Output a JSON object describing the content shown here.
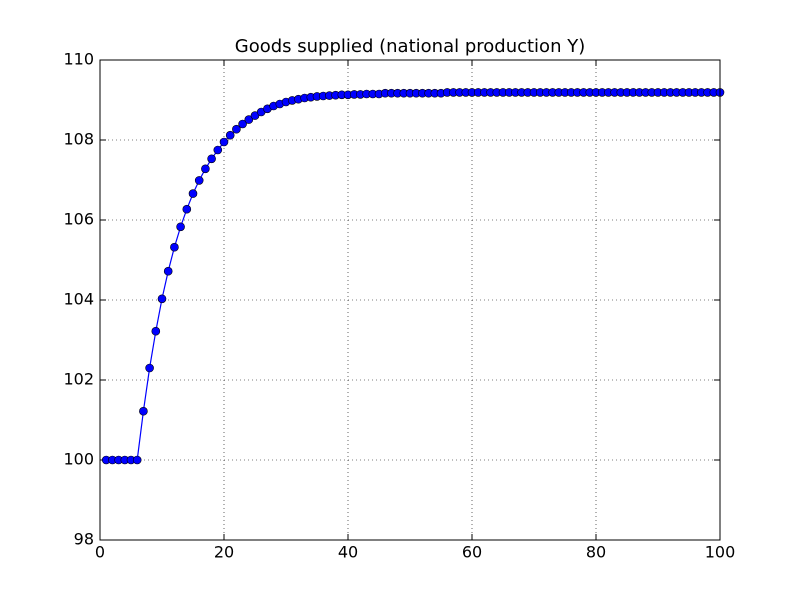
{
  "chart_data": {
    "type": "line",
    "title": "Goods supplied (national production Y)",
    "x": [
      1,
      2,
      3,
      4,
      5,
      6,
      7,
      8,
      9,
      10,
      11,
      12,
      13,
      14,
      15,
      16,
      17,
      18,
      19,
      20,
      21,
      22,
      23,
      24,
      25,
      26,
      27,
      28,
      29,
      30,
      31,
      32,
      33,
      34,
      35,
      36,
      37,
      38,
      39,
      40,
      41,
      42,
      43,
      44,
      45,
      46,
      47,
      48,
      49,
      50,
      51,
      52,
      53,
      54,
      55,
      56,
      57,
      58,
      59,
      60,
      61,
      62,
      63,
      64,
      65,
      66,
      67,
      68,
      69,
      70,
      71,
      72,
      73,
      74,
      75,
      76,
      77,
      78,
      79,
      80,
      81,
      82,
      83,
      84,
      85,
      86,
      87,
      88,
      89,
      90,
      91,
      92,
      93,
      94,
      95,
      96,
      97,
      98,
      99,
      100
    ],
    "series": [
      {
        "color": "#0000ff",
        "values": [
          100,
          100,
          100,
          100,
          100,
          100,
          101.22,
          102.3,
          103.22,
          104.03,
          104.72,
          105.32,
          105.83,
          106.27,
          106.66,
          106.99,
          107.28,
          107.53,
          107.75,
          107.95,
          108.12,
          108.27,
          108.4,
          108.51,
          108.61,
          108.7,
          108.78,
          108.85,
          108.9,
          108.95,
          108.99,
          109.02,
          109.05,
          109.07,
          109.09,
          109.1,
          109.11,
          109.12,
          109.13,
          109.13,
          109.14,
          109.14,
          109.15,
          109.15,
          109.15,
          109.17,
          109.17,
          109.17,
          109.17,
          109.17,
          109.17,
          109.17,
          109.17,
          109.17,
          109.17,
          109.19,
          109.19,
          109.19,
          109.19,
          109.19,
          109.19,
          109.19,
          109.19,
          109.19,
          109.19,
          109.19,
          109.19,
          109.19,
          109.19,
          109.19,
          109.19,
          109.19,
          109.19,
          109.19,
          109.19,
          109.19,
          109.19,
          109.19,
          109.19,
          109.19,
          109.19,
          109.19,
          109.19,
          109.19,
          109.19,
          109.19,
          109.19,
          109.19,
          109.19,
          109.19,
          109.19,
          109.19,
          109.19,
          109.19,
          109.19,
          109.19,
          109.19,
          109.19,
          109.19,
          109.19
        ]
      }
    ],
    "xlim": [
      0,
      100
    ],
    "xticks": [
      0,
      20,
      40,
      60,
      80,
      100
    ],
    "ylim": [
      98,
      110
    ],
    "yticks": [
      98,
      100,
      102,
      104,
      106,
      108,
      110
    ],
    "grid": true
  }
}
